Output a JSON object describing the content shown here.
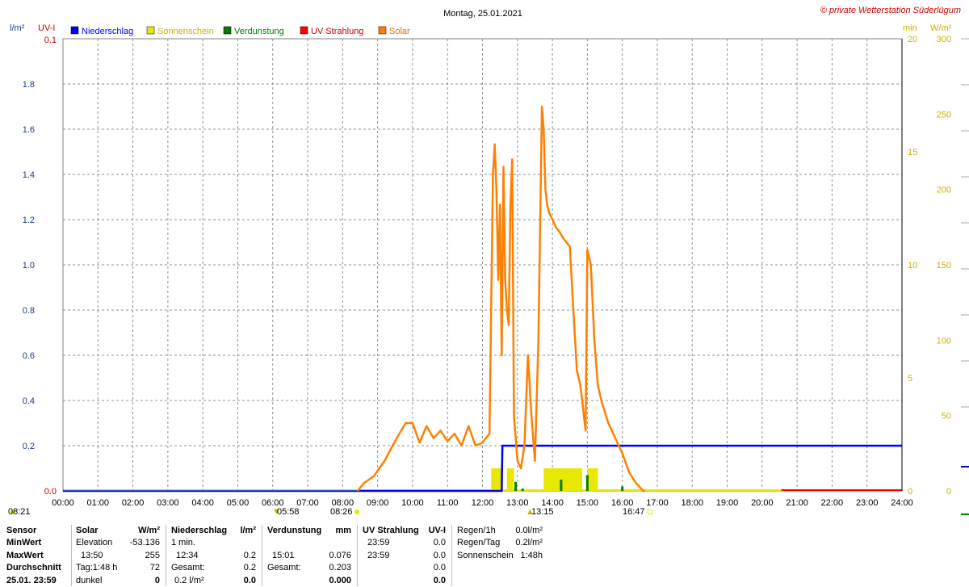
{
  "header": {
    "title": "Montag, 25.01.2021",
    "copyright": "© private Wetterstation Süderlügum",
    "left_units": [
      "l/m²",
      "UV-I"
    ],
    "right_units": [
      "min",
      "W/m²"
    ]
  },
  "legend": [
    {
      "label": "Niederschlag",
      "color": "#0000ff"
    },
    {
      "label": "Sonnenschein",
      "color": "#e8e800"
    },
    {
      "label": "Verdunstung",
      "color": "#008000"
    },
    {
      "label": "UV Strahlung",
      "color": "#ff0000"
    },
    {
      "label": "Solar",
      "color": "#ff8000"
    }
  ],
  "axis_labels": {
    "uv_top": "0.1",
    "uv_bottom": "0.0",
    "precip_ticks": [
      "1.8",
      "1.6",
      "1.4",
      "1.2",
      "1.0",
      "0.8",
      "0.6",
      "0.4",
      "0.2",
      "0.0"
    ],
    "sun_ticks": [
      "20",
      "15",
      "10",
      "5",
      "0"
    ],
    "solar_ticks": [
      "300",
      "250",
      "200",
      "150",
      "100",
      "50",
      "0"
    ],
    "time_ticks": [
      "00:00",
      "01:00",
      "02:00",
      "03:00",
      "04:00",
      "05:00",
      "06:00",
      "07:00",
      "08:00",
      "09:00",
      "10:00",
      "11:00",
      "12:00",
      "13:00",
      "14:00",
      "15:00",
      "16:00",
      "17:00",
      "18:00",
      "19:00",
      "20:00",
      "21:00",
      "22:00",
      "23:00",
      "24:00"
    ]
  },
  "markers": {
    "moonrise": "08:21",
    "twilight": "05:58",
    "sunrise": "08:26",
    "noon": "13:15",
    "sunset": "16:47"
  },
  "chart_data": {
    "type": "line",
    "title": "Montag, 25.01.2021",
    "x_unit": "hours",
    "xlim": [
      0,
      24
    ],
    "ylim_precip": [
      0,
      2.0
    ],
    "ylim_sunshine_min": [
      0,
      20
    ],
    "ylim_solar": [
      0,
      300
    ],
    "ylim_uv": [
      0,
      0.1
    ],
    "grid": true,
    "legend_position": "top-left",
    "series": [
      {
        "name": "Solar",
        "axis": "W/m²",
        "color": "#ff8000",
        "x": [
          8.43,
          8.6,
          8.9,
          9.2,
          9.5,
          9.8,
          10.0,
          10.2,
          10.4,
          10.6,
          10.8,
          11.0,
          11.2,
          11.4,
          11.6,
          11.8,
          12.0,
          12.2,
          12.3,
          12.35,
          12.4,
          12.45,
          12.5,
          12.55,
          12.6,
          12.65,
          12.7,
          12.75,
          12.8,
          12.85,
          12.9,
          13.0,
          13.1,
          13.2,
          13.3,
          13.4,
          13.5,
          13.6,
          13.7,
          13.75,
          13.8,
          13.85,
          13.9,
          14.0,
          14.1,
          14.2,
          14.3,
          14.4,
          14.5,
          14.6,
          14.7,
          14.8,
          14.9,
          14.95,
          15.0,
          15.05,
          15.1,
          15.2,
          15.3,
          15.4,
          15.6,
          15.8,
          16.0,
          16.2,
          16.4,
          16.6,
          16.65
        ],
        "values": [
          0,
          5,
          10,
          20,
          33,
          45,
          45,
          32,
          43,
          35,
          40,
          33,
          38,
          30,
          43,
          30,
          32,
          38,
          210,
          230,
          200,
          140,
          190,
          90,
          215,
          140,
          120,
          110,
          190,
          220,
          50,
          20,
          15,
          30,
          90,
          50,
          20,
          100,
          255,
          240,
          200,
          190,
          185,
          180,
          175,
          172,
          168,
          165,
          162,
          120,
          80,
          70,
          50,
          40,
          160,
          155,
          150,
          100,
          70,
          60,
          45,
          35,
          25,
          12,
          5,
          0,
          0
        ]
      },
      {
        "name": "Sonnenschein",
        "axis": "min",
        "color": "#e8e800",
        "blocks": [
          [
            12.25,
            12.55
          ],
          [
            12.7,
            12.9
          ],
          [
            13.75,
            14.85
          ],
          [
            15.0,
            15.3
          ]
        ],
        "value": 1.0
      },
      {
        "name": "Verdunstung",
        "axis": "l/m²",
        "color": "#008000",
        "x": [
          12.95,
          13.15,
          14.25,
          15.0,
          16.0
        ],
        "values": [
          0.04,
          0.01,
          0.05,
          0.07,
          0.02
        ]
      },
      {
        "name": "Niederschlag",
        "axis": "l/m²",
        "color": "#0000ff",
        "x": [
          0.0,
          12.55,
          12.57,
          24.0
        ],
        "values": [
          0.0,
          0.0,
          0.2,
          0.2
        ]
      },
      {
        "name": "UV Strahlung",
        "axis": "UV-I",
        "color": "#ff0000",
        "x": [
          20.55,
          24.0
        ],
        "values": [
          0.0,
          0.0
        ]
      }
    ]
  },
  "stats": {
    "sensor": {
      "header": "Sensor",
      "rows": [
        "MinWert",
        "MaxWert",
        "Durchschnitt",
        "25.01. 23:59"
      ]
    },
    "solar": {
      "header": "Solar",
      "unit": "W/m²",
      "rows": [
        [
          "Elevation",
          "-53.136"
        ],
        [
          "13:50",
          "255"
        ],
        [
          "Tag:1:48 h",
          "72"
        ],
        [
          "dunkel",
          "0"
        ]
      ]
    },
    "precip": {
      "header": "Niederschlag",
      "unit": "l/m²",
      "rows": [
        [
          "1 min.",
          ""
        ],
        [
          "12:34",
          "0.2"
        ],
        [
          "Gesamt:",
          "0.2"
        ],
        [
          "0.2 l/m²",
          "0.0"
        ]
      ]
    },
    "evap": {
      "header": "Verdunstung",
      "unit": "mm",
      "rows": [
        [
          "",
          ""
        ],
        [
          "15:01",
          "0.076"
        ],
        [
          "Gesamt:",
          "0.203"
        ],
        [
          "",
          "0.000"
        ]
      ]
    },
    "uv": {
      "header": "UV Strahlung",
      "unit": "UV-I",
      "rows": [
        [
          "23:59",
          "0.0"
        ],
        [
          "23:59",
          "0.0"
        ],
        [
          "",
          "0.0"
        ],
        [
          "",
          "0.0"
        ]
      ]
    },
    "rain": {
      "rows": [
        [
          "Regen/1h",
          "0.0l/m²"
        ],
        [
          "Regen/Tag",
          "0.2l/m²"
        ],
        [
          "Sonnenschein",
          "1:48h"
        ]
      ]
    }
  }
}
